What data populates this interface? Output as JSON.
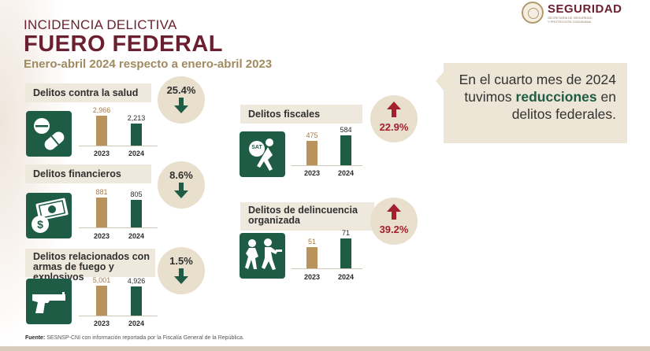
{
  "header": {
    "subtitle": "INCIDENCIA DELICTIVA",
    "title": "FUERO FEDERAL",
    "period": "Enero-abril 2024 respecto a enero-abril 2023"
  },
  "logo": {
    "name": "SEGURIDAD",
    "subline_1": "SECRETARÍA DE SEGURIDAD",
    "subline_2": "Y PROTECCIÓN CIUDADANA"
  },
  "callout": {
    "line1": "En el cuarto mes de 2024 tuvimos",
    "emphasis": "reducciones",
    "line2": "en delitos federales."
  },
  "footer": {
    "source_label": "Fuente:",
    "source_text": "SESNSP-CNI con información reportada por la Fiscalía General de la República."
  },
  "colors": {
    "title": "#6b1f2f",
    "bar_2023": "#b8935c",
    "bar_2024": "#1f5c45",
    "decrease": "#1f5c45",
    "increase": "#a3202e"
  },
  "chart_data": [
    {
      "type": "bar",
      "title": "Delitos contra la salud",
      "categories": [
        "2023",
        "2024"
      ],
      "values": [
        2966,
        2213
      ],
      "value_labels": [
        "2,966",
        "2,213"
      ],
      "change": "25.4%",
      "direction": "down",
      "icon": "pills-icon"
    },
    {
      "type": "bar",
      "title": "Delitos financieros",
      "categories": [
        "2023",
        "2024"
      ],
      "values": [
        881,
        805
      ],
      "value_labels": [
        "881",
        "805"
      ],
      "change": "8.6%",
      "direction": "down",
      "icon": "money-icon"
    },
    {
      "type": "bar",
      "title": "Delitos relacionados con armas de fuego y explosivos",
      "title_lines": [
        "Delitos relacionados con",
        "armas de fuego y explosivos"
      ],
      "categories": [
        "2023",
        "2024"
      ],
      "values": [
        5001,
        4926
      ],
      "value_labels": [
        "5,001",
        "4,926"
      ],
      "change": "1.5%",
      "direction": "down",
      "icon": "handgun-icon"
    },
    {
      "type": "bar",
      "title": "Delitos fiscales",
      "categories": [
        "2023",
        "2024"
      ],
      "values": [
        475,
        584
      ],
      "value_labels": [
        "475",
        "584"
      ],
      "change": "22.9%",
      "direction": "up",
      "icon": "sat-thief-icon",
      "icon_text": "SAT"
    },
    {
      "type": "bar",
      "title": "Delitos de delincuencia organizada",
      "title_lines": [
        "Delitos de delincuencia",
        "organizada"
      ],
      "categories": [
        "2023",
        "2024"
      ],
      "values": [
        51,
        71
      ],
      "value_labels": [
        "51",
        "71"
      ],
      "change": "39.2%",
      "direction": "up",
      "icon": "gang-icon"
    }
  ]
}
